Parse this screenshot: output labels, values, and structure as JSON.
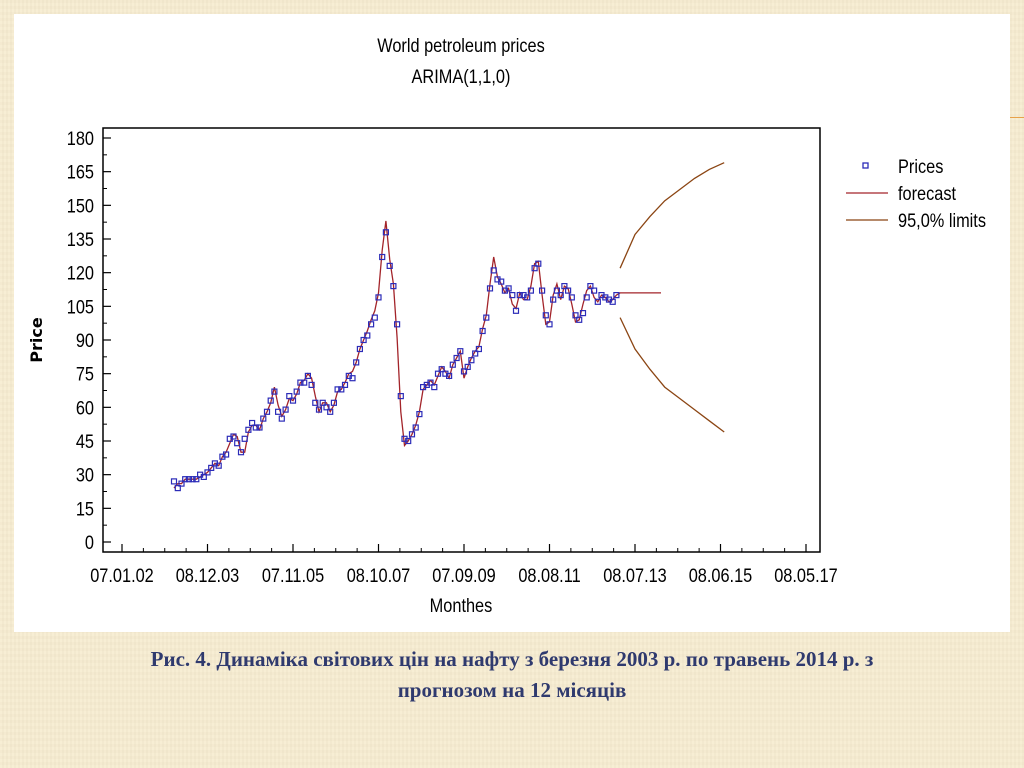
{
  "slide": {
    "caption_line1": "Рис. 4.  Динаміка світових цін на нафту з березня 2003 р. по травень 2014 р.  з",
    "caption_line2": "прогнозом на 12 місяців"
  },
  "chart_data": {
    "type": "scatter",
    "title": "World petroleum prices",
    "subtitle": "ARIMA(1,1,0)",
    "xlabel": "Monthes",
    "ylabel": "Price",
    "xlim": [
      0,
      186
    ],
    "ylim": [
      0,
      180
    ],
    "x_ticks": [
      {
        "pos": 0,
        "label": "07.01.02"
      },
      {
        "pos": 23,
        "label": "08.12.03"
      },
      {
        "pos": 46,
        "label": "07.11.05"
      },
      {
        "pos": 69,
        "label": "08.10.07"
      },
      {
        "pos": 92,
        "label": "07.09.09"
      },
      {
        "pos": 115,
        "label": "08.08.11"
      },
      {
        "pos": 138,
        "label": "08.07.13"
      },
      {
        "pos": 161,
        "label": "08.06.15"
      },
      {
        "pos": 184,
        "label": "08.05.17"
      }
    ],
    "y_ticks": [
      0,
      15,
      30,
      45,
      60,
      75,
      90,
      105,
      120,
      135,
      150,
      165,
      180
    ],
    "legend_position": "right",
    "series": [
      {
        "name": "Prices",
        "kind": "markers",
        "color": "#2c2cb8",
        "start_index": 14,
        "values": [
          27,
          24,
          26,
          28,
          28,
          28,
          28,
          30,
          29,
          31,
          33,
          35,
          34,
          38,
          39,
          46,
          47,
          44,
          40,
          46,
          50,
          53,
          51,
          51,
          55,
          58,
          63,
          67,
          58,
          55,
          59,
          65,
          63,
          67,
          71,
          71,
          74,
          70,
          62,
          59,
          62,
          60,
          58,
          62,
          68,
          68,
          70,
          74,
          73,
          80,
          86,
          90,
          92,
          97,
          100,
          109,
          127,
          138,
          123,
          114,
          97,
          65,
          46,
          45,
          48,
          51,
          57,
          69,
          70,
          71,
          69,
          75,
          77,
          75,
          74,
          79,
          82,
          85,
          76,
          78,
          81,
          84,
          86,
          94,
          100,
          113,
          121,
          117,
          116,
          112,
          113,
          110,
          103,
          110,
          110,
          109,
          112,
          122,
          124,
          112,
          101,
          97,
          108,
          112,
          110,
          114,
          112,
          109,
          101,
          99,
          102,
          109,
          114,
          112,
          107,
          110,
          109,
          108,
          107,
          110
        ]
      },
      {
        "name": "forecast",
        "kind": "line",
        "color": "#a3242a",
        "start_index": 14,
        "values": [
          24,
          26,
          26,
          28,
          28,
          28,
          28,
          29,
          30,
          31,
          33,
          35,
          34,
          38,
          40,
          44,
          48,
          47,
          40,
          40,
          49,
          52,
          52,
          50,
          55,
          58,
          62,
          69,
          61,
          56,
          59,
          64,
          63,
          66,
          71,
          72,
          75,
          73,
          65,
          58,
          62,
          62,
          58,
          61,
          67,
          68,
          71,
          75,
          76,
          80,
          86,
          90,
          94,
          99,
          103,
          111,
          130,
          143,
          126,
          115,
          91,
          58,
          43,
          45,
          48,
          52,
          58,
          68,
          70,
          72,
          70,
          74,
          78,
          76,
          73,
          79,
          82,
          85,
          73,
          78,
          82,
          85,
          87,
          95,
          101,
          115,
          127,
          118,
          115,
          111,
          113,
          106,
          104,
          111,
          108,
          108,
          114,
          124,
          125,
          110,
          97,
          98,
          110,
          115,
          108,
          114,
          113,
          106,
          98,
          99,
          106,
          112,
          114,
          109,
          107,
          110,
          109,
          107,
          108,
          110,
          111,
          111,
          111,
          111,
          111,
          111,
          111,
          111,
          111,
          111,
          111,
          111
        ]
      },
      {
        "name": "95,0% limits",
        "kind": "band",
        "color": "#8b4513",
        "x_start": 134,
        "upper": [
          122,
          137,
          145,
          152,
          157,
          162,
          166,
          169
        ],
        "lower": [
          100,
          86,
          77,
          69,
          64,
          59,
          54,
          49
        ]
      }
    ]
  }
}
